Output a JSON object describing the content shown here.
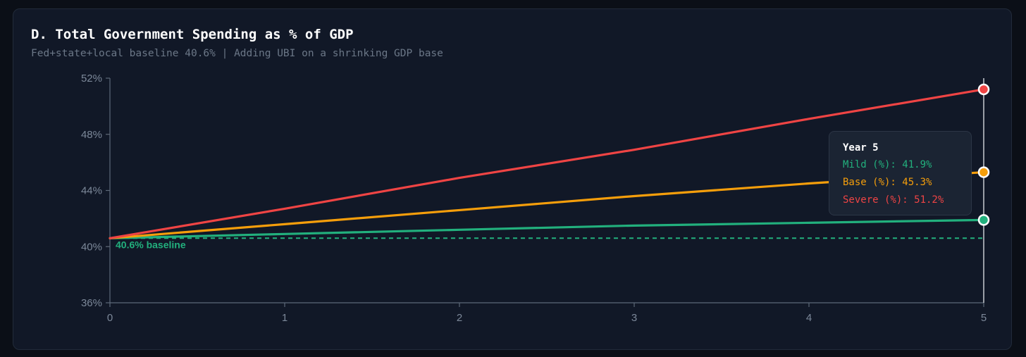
{
  "title": "D. Total Government Spending as % of GDP",
  "subtitle": "Fed+state+local baseline 40.6% | Adding UBI on a shrinking GDP base",
  "colors": {
    "mild": "#22b07d",
    "base": "#f59e0b",
    "severe": "#ef4444",
    "axis": "#5d6878",
    "crosshair": "#e5e7eb"
  },
  "chart_data": {
    "type": "line",
    "title": "D. Total Government Spending as % of GDP",
    "xlabel": "",
    "ylabel": "",
    "x": [
      0,
      1,
      2,
      3,
      4,
      5
    ],
    "xlim": [
      0,
      5
    ],
    "ylim": [
      36,
      52
    ],
    "x_ticks": [
      "0",
      "1",
      "2",
      "3",
      "4",
      "5"
    ],
    "y_ticks": [
      "36%",
      "40%",
      "44%",
      "48%",
      "52%"
    ],
    "y_tick_values": [
      36,
      40,
      44,
      48,
      52
    ],
    "grid": false,
    "series": [
      {
        "name": "Mild (%)",
        "key": "mild",
        "values": [
          40.6,
          40.9,
          41.2,
          41.5,
          41.7,
          41.9
        ]
      },
      {
        "name": "Base (%)",
        "key": "base",
        "values": [
          40.6,
          41.6,
          42.6,
          43.6,
          44.5,
          45.3
        ]
      },
      {
        "name": "Severe (%)",
        "key": "severe",
        "values": [
          40.6,
          42.7,
          44.9,
          46.9,
          49.1,
          51.2
        ]
      }
    ],
    "reference_line": {
      "value": 40.6,
      "label": "40.6% baseline",
      "style": "dashed"
    },
    "tooltip": {
      "title": "Year 5",
      "x": 5,
      "rows": [
        {
          "key": "mild",
          "text": "Mild (%): 41.9%"
        },
        {
          "key": "base",
          "text": "Base (%): 45.3%"
        },
        {
          "key": "severe",
          "text": "Severe (%): 51.2%"
        }
      ]
    }
  }
}
